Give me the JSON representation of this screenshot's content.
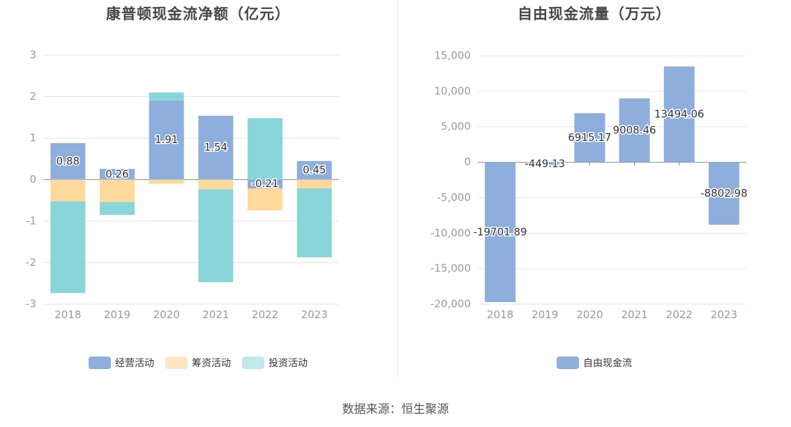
{
  "source": "数据来源：恒生聚源",
  "chart_data": [
    {
      "type": "bar",
      "stacked": true,
      "title": "康普顿现金流净额（亿元）",
      "categories": [
        "2018",
        "2019",
        "2020",
        "2021",
        "2022",
        "2023"
      ],
      "ylim": [
        -3,
        3
      ],
      "yticks": [
        -3,
        -2,
        -1,
        0,
        1,
        2,
        3
      ],
      "grid": true,
      "legend_position": "bottom",
      "series": [
        {
          "name": "经营活动",
          "color": "#8eaedb",
          "values": [
            0.88,
            0.26,
            1.91,
            1.54,
            -0.21,
            0.45
          ],
          "labels": [
            "0.88",
            "0.26",
            "1.91",
            "1.54",
            "-0.21",
            "0.45"
          ]
        },
        {
          "name": "筹资活动",
          "color": "#fdd99b",
          "values": [
            -0.52,
            -0.54,
            -0.1,
            -0.23,
            -0.53,
            -0.21
          ]
        },
        {
          "name": "投资活动",
          "color": "#88d6d9",
          "values": [
            -2.21,
            -0.31,
            0.19,
            -2.24,
            1.48,
            -1.66
          ]
        }
      ],
      "legend": [
        {
          "name": "经营活动",
          "color": "#8eaedb"
        },
        {
          "name": "筹资活动",
          "color": "#ffe6c2"
        },
        {
          "name": "投资活动",
          "color": "#bfe9eb"
        }
      ]
    },
    {
      "type": "bar",
      "title": "自由现金流量（万元）",
      "categories": [
        "2018",
        "2019",
        "2020",
        "2021",
        "2022",
        "2023"
      ],
      "ylim": [
        -20000,
        15000
      ],
      "yticks": [
        -20000,
        -15000,
        -10000,
        -5000,
        0,
        5000,
        10000,
        15000
      ],
      "ytick_labels": [
        "-20,000",
        "-15,000",
        "-10,000",
        "-5,000",
        "0",
        "5,000",
        "10,000",
        "15,000"
      ],
      "grid": true,
      "legend_position": "bottom",
      "series": [
        {
          "name": "自由现金流",
          "color": "#8eaedb",
          "values": [
            -19701.89,
            -449.13,
            6915.17,
            9008.46,
            13494.06,
            -8802.98
          ],
          "labels": [
            "-19701.89",
            "-449.13",
            "6915.17",
            "9008.46",
            "13494.06",
            "-8802.98"
          ]
        }
      ],
      "legend": [
        {
          "name": "自由现金流",
          "color": "#8eaedb"
        }
      ]
    }
  ]
}
